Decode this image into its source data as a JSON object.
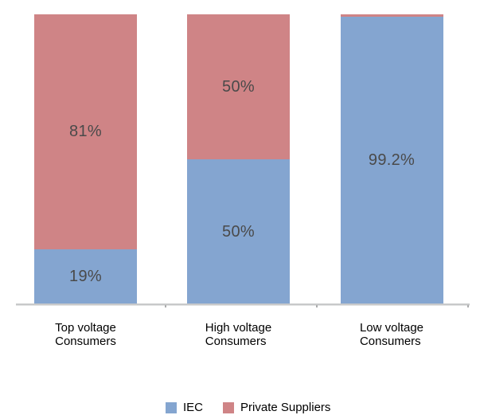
{
  "chart_data": {
    "type": "bar",
    "stacked": true,
    "orientation": "vertical",
    "title": "",
    "categories": [
      "Top voltage\nConsumers",
      "High voltage\nConsumers",
      "Low voltage\nConsumers"
    ],
    "series": [
      {
        "name": "IEC",
        "color": "#84A5D0",
        "values": [
          19,
          50,
          99.2
        ],
        "labels": [
          "19%",
          "50%",
          "99.2%"
        ]
      },
      {
        "name": "Private Suppliers",
        "color": "#CF8486",
        "values": [
          81,
          50,
          0.8
        ],
        "labels": [
          "81%",
          "50%",
          ""
        ]
      }
    ],
    "ylim": [
      0,
      100
    ],
    "grid": false,
    "legend_position": "bottom",
    "colors": {
      "data_label": "#4A4A4A",
      "category_label": "#000000",
      "legend_text": "#000000",
      "axis_line": "#C8C9CA",
      "tick": "#ABACAD",
      "background": "#FFFFFF"
    }
  }
}
